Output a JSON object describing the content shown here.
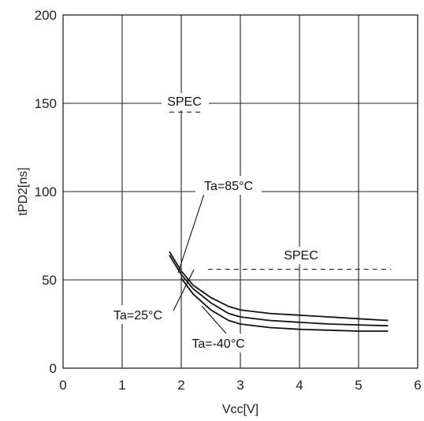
{
  "chart_data": {
    "type": "line",
    "xlabel": "Vcc[V]",
    "ylabel": "tPD2[ns]",
    "xlim": [
      0,
      6
    ],
    "ylim": [
      0,
      200
    ],
    "xticks": [
      "0",
      "1",
      "2",
      "3",
      "4",
      "5",
      "6"
    ],
    "yticks": [
      "0",
      "50",
      "100",
      "150",
      "200"
    ],
    "grid": true,
    "series": [
      {
        "name": "Ta=85°C",
        "x": [
          1.8,
          2.0,
          2.2,
          2.5,
          2.8,
          3.0,
          3.5,
          4.0,
          4.5,
          5.0,
          5.5
        ],
        "y": [
          66,
          55,
          47,
          40,
          35,
          33,
          31,
          30,
          29,
          28,
          27
        ]
      },
      {
        "name": "Ta=25°C",
        "x": [
          1.8,
          2.0,
          2.2,
          2.5,
          2.8,
          3.0,
          3.5,
          4.0,
          4.5,
          5.0,
          5.5
        ],
        "y": [
          64,
          53,
          45,
          37,
          31,
          29,
          27,
          26,
          25,
          24.5,
          24
        ]
      },
      {
        "name": "Ta=-40°C",
        "x": [
          2.0,
          2.2,
          2.5,
          2.8,
          3.0,
          3.5,
          4.0,
          4.5,
          5.0,
          5.5
        ],
        "y": [
          51,
          42,
          33,
          27,
          25,
          23,
          22,
          21.5,
          21,
          21
        ]
      }
    ],
    "spec_lines": [
      {
        "label": "SPEC",
        "y": 145,
        "x_range": [
          1.8,
          2.35
        ]
      },
      {
        "label": "SPEC",
        "y": 56,
        "x_range": [
          2.45,
          5.55
        ]
      }
    ],
    "annotations": [
      {
        "text": "Ta=85°C"
      },
      {
        "text": "Ta=25°C"
      },
      {
        "text": "Ta=-40°C"
      }
    ]
  }
}
